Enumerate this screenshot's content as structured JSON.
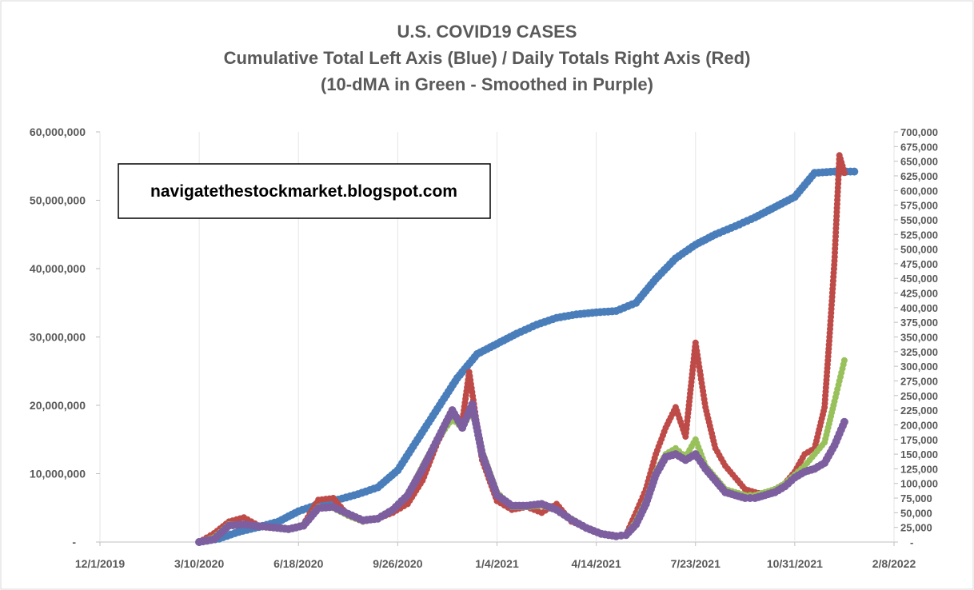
{
  "chart_data": {
    "type": "line",
    "title": "U.S. COVID19 CASES",
    "subtitle_1": "Cumulative Total Left Axis (Blue) / Daily Totals Right Axis (Red)",
    "subtitle_2": "(10-dMA in Green - Smoothed in Purple)",
    "watermark": "navigatethestockmarket.blogspot.com",
    "x_ticks": [
      "12/1/2019",
      "3/10/2020",
      "6/18/2020",
      "9/26/2020",
      "1/4/2021",
      "4/14/2021",
      "7/23/2021",
      "10/31/2021",
      "2/8/2022"
    ],
    "x_range_days": [
      0,
      800
    ],
    "y_left": {
      "ticks": [
        "-",
        "10,000,000",
        "20,000,000",
        "30,000,000",
        "40,000,000",
        "50,000,000",
        "60,000,000"
      ],
      "range": [
        0,
        60000000
      ]
    },
    "y_right": {
      "ticks": [
        "-",
        "25,000",
        "50,000",
        "75,000",
        "100,000",
        "125,000",
        "150,000",
        "175,000",
        "200,000",
        "225,000",
        "250,000",
        "275,000",
        "300,000",
        "325,000",
        "350,000",
        "375,000",
        "400,000",
        "425,000",
        "450,000",
        "475,000",
        "500,000",
        "525,000",
        "550,000",
        "575,000",
        "600,000",
        "625,000",
        "650,000",
        "675,000",
        "700,000"
      ],
      "range": [
        0,
        700000
      ]
    },
    "colors": {
      "cumulative": "#4a7ebb",
      "daily": "#be4b48",
      "ma10": "#98c15b",
      "smoothed": "#7d5fa0"
    },
    "series": [
      {
        "name": "Cumulative Total",
        "axis": "left",
        "color": "#4a7ebb",
        "x_days": [
          100,
          120,
          140,
          160,
          180,
          200,
          220,
          240,
          260,
          280,
          300,
          320,
          340,
          360,
          380,
          400,
          420,
          440,
          460,
          480,
          500,
          520,
          540,
          560,
          580,
          600,
          620,
          640,
          660,
          680,
          700,
          720,
          740,
          760
        ],
        "values": [
          0,
          500000,
          1500000,
          2200000,
          3000000,
          4500000,
          5500000,
          6200000,
          7000000,
          8000000,
          10500000,
          15000000,
          19500000,
          24000000,
          27500000,
          29000000,
          30500000,
          31800000,
          32800000,
          33300000,
          33600000,
          33800000,
          35000000,
          38500000,
          41500000,
          43500000,
          45000000,
          46200000,
          47500000,
          49000000,
          50500000,
          54000000,
          54200000,
          54200000
        ]
      },
      {
        "name": "Daily Totals",
        "axis": "right",
        "color": "#be4b48",
        "x_days": [
          100,
          115,
          130,
          145,
          160,
          175,
          190,
          205,
          220,
          235,
          250,
          265,
          280,
          295,
          310,
          325,
          340,
          355,
          365,
          372,
          385,
          400,
          415,
          430,
          445,
          460,
          475,
          490,
          505,
          520,
          530,
          540,
          550,
          560,
          570,
          580,
          590,
          600,
          610,
          620,
          630,
          640,
          650,
          660,
          670,
          680,
          690,
          700,
          710,
          720,
          730,
          735,
          740,
          745,
          750
        ],
        "values": [
          0,
          15000,
          35000,
          42000,
          28000,
          25000,
          22000,
          30000,
          72000,
          75000,
          45000,
          35000,
          40000,
          50000,
          65000,
          105000,
          170000,
          220000,
          205000,
          290000,
          140000,
          70000,
          55000,
          60000,
          50000,
          65000,
          35000,
          25000,
          15000,
          10000,
          12000,
          50000,
          90000,
          150000,
          195000,
          230000,
          180000,
          340000,
          230000,
          160000,
          130000,
          110000,
          90000,
          85000,
          80000,
          90000,
          100000,
          120000,
          150000,
          160000,
          230000,
          350000,
          480000,
          660000,
          630000
        ]
      },
      {
        "name": "10-dMA",
        "axis": "right",
        "color": "#98c15b",
        "x_days": [
          100,
          115,
          130,
          145,
          160,
          175,
          190,
          205,
          220,
          235,
          250,
          265,
          280,
          295,
          310,
          325,
          340,
          355,
          365,
          375,
          385,
          400,
          415,
          430,
          445,
          460,
          475,
          490,
          505,
          520,
          530,
          540,
          550,
          560,
          570,
          580,
          590,
          600,
          610,
          620,
          630,
          640,
          650,
          660,
          670,
          680,
          690,
          700,
          710,
          720,
          730,
          740,
          745,
          750
        ],
        "values": [
          0,
          8000,
          30000,
          30000,
          28000,
          25000,
          22000,
          30000,
          60000,
          58000,
          45000,
          35000,
          40000,
          55000,
          80000,
          130000,
          175000,
          210000,
          195000,
          225000,
          155000,
          85000,
          60000,
          60000,
          62000,
          55000,
          40000,
          25000,
          15000,
          10000,
          12000,
          35000,
          70000,
          120000,
          150000,
          160000,
          145000,
          175000,
          130000,
          110000,
          90000,
          85000,
          80000,
          80000,
          85000,
          90000,
          100000,
          115000,
          130000,
          150000,
          170000,
          240000,
          275000,
          310000
        ]
      },
      {
        "name": "Smoothed",
        "axis": "right",
        "color": "#7d5fa0",
        "x_days": [
          100,
          115,
          130,
          145,
          160,
          175,
          190,
          205,
          220,
          235,
          250,
          265,
          280,
          295,
          310,
          325,
          340,
          355,
          365,
          375,
          385,
          400,
          415,
          430,
          445,
          460,
          475,
          490,
          505,
          520,
          530,
          540,
          550,
          560,
          570,
          580,
          590,
          600,
          610,
          620,
          630,
          640,
          650,
          660,
          670,
          680,
          690,
          700,
          710,
          720,
          730,
          740,
          745,
          750
        ],
        "values": [
          0,
          5000,
          28000,
          30000,
          27000,
          25000,
          22000,
          28000,
          58000,
          60000,
          48000,
          37000,
          40000,
          55000,
          80000,
          125000,
          175000,
          225000,
          195000,
          235000,
          150000,
          80000,
          62000,
          62000,
          65000,
          55000,
          38000,
          24000,
          14000,
          10000,
          12000,
          30000,
          65000,
          115000,
          145000,
          150000,
          140000,
          150000,
          125000,
          105000,
          85000,
          80000,
          75000,
          75000,
          80000,
          85000,
          95000,
          110000,
          120000,
          125000,
          135000,
          165000,
          185000,
          205000
        ]
      }
    ]
  }
}
